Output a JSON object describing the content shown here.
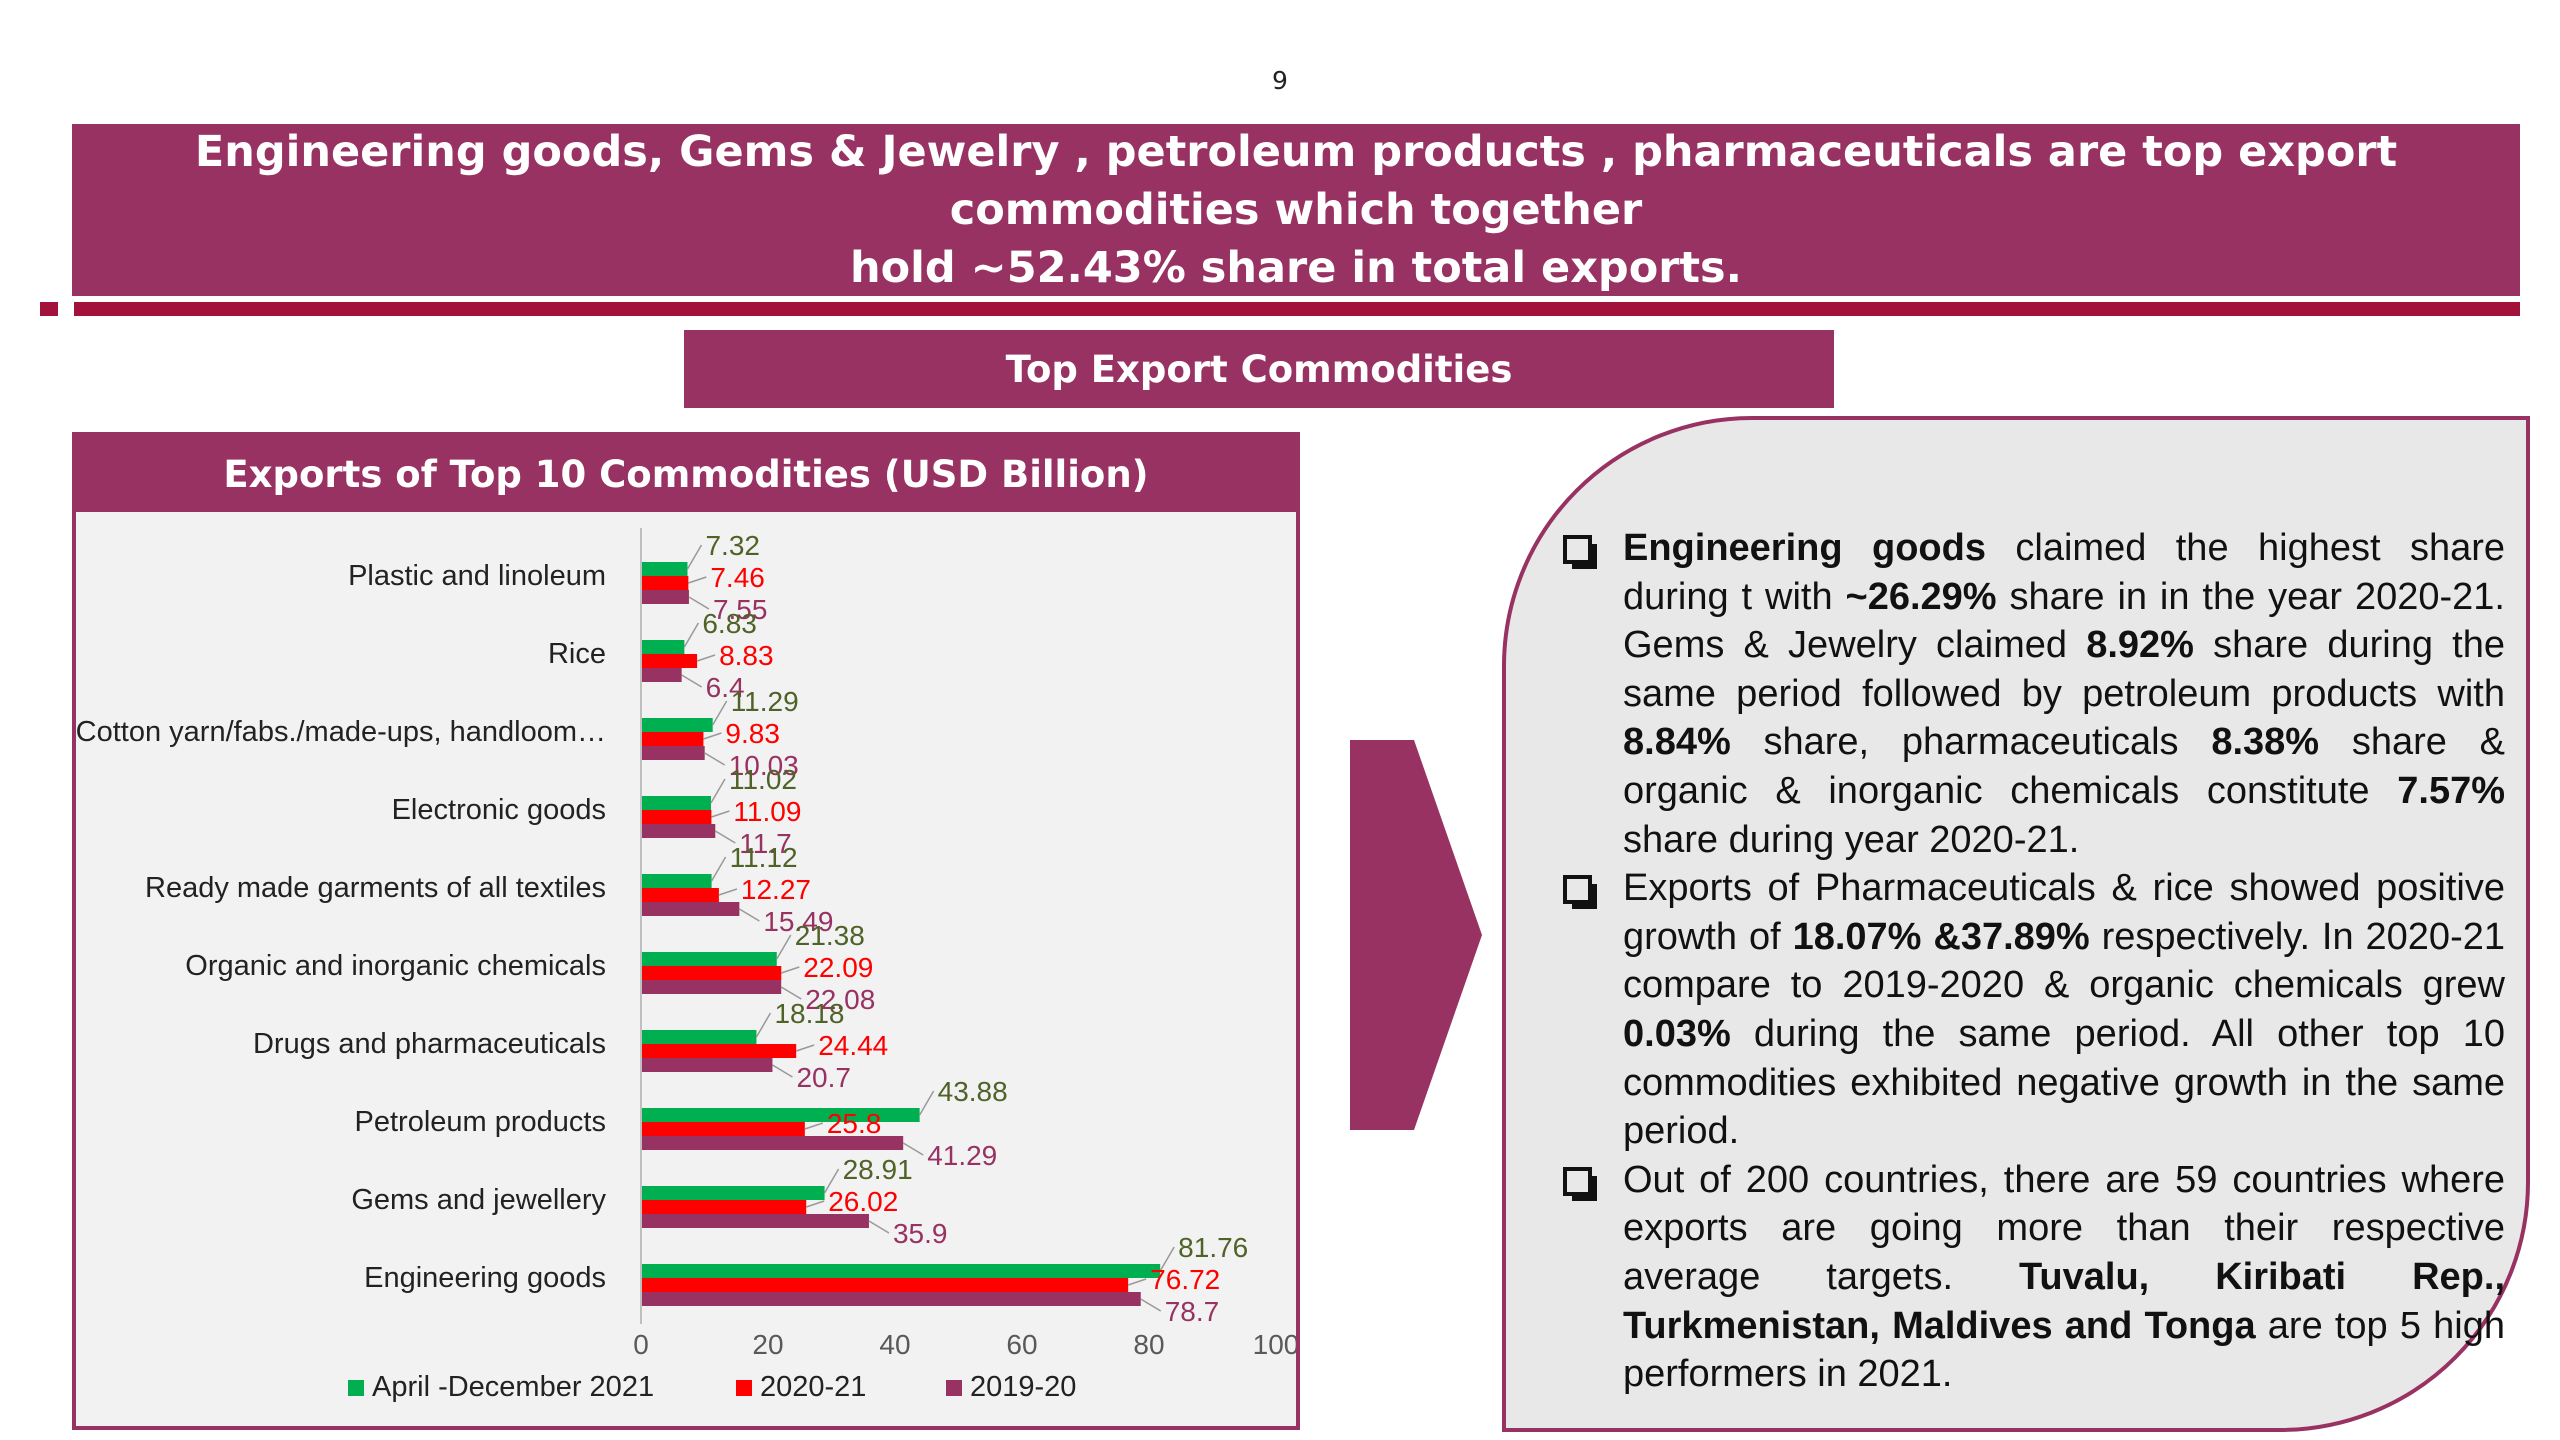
{
  "page_number": "9",
  "banner": {
    "line1": "Engineering goods, Gems & Jewelry , petroleum products , pharmaceuticals are top export commodities which together",
    "line2": "hold ~52.43% share in total exports."
  },
  "section_header": "Top Export Commodities",
  "colors": {
    "brand": "#983262",
    "accent_rule": "#a3123b",
    "series_april_dec_2021": "#00b050",
    "series_2020_21": "#ff0000",
    "series_2019_20": "#983262"
  },
  "chart_data": {
    "type": "bar",
    "orientation": "horizontal",
    "title": "Exports of Top 10 Commodities (USD Billion)",
    "categories": [
      "Plastic and linoleum",
      "Rice",
      "Cotton yarn/fabs./made-ups, handloom…",
      "Electronic goods",
      "Ready made garments of all textiles",
      "Organic and inorganic chemicals",
      "Drugs and pharmaceuticals",
      "Petroleum products",
      "Gems and jewellery",
      "Engineering goods"
    ],
    "series": [
      {
        "name": "April -December 2021",
        "color": "#00b050",
        "label_color": "#4f6228",
        "values": [
          7.32,
          6.83,
          11.29,
          11.02,
          11.12,
          21.38,
          18.18,
          43.88,
          28.91,
          81.76
        ]
      },
      {
        "name": "2020-21",
        "color": "#ff0000",
        "label_color": "#ff0000",
        "values": [
          7.46,
          8.83,
          9.83,
          11.09,
          12.27,
          22.09,
          24.44,
          25.8,
          26.02,
          76.72
        ]
      },
      {
        "name": "2019-20",
        "color": "#983262",
        "label_color": "#983262",
        "values": [
          7.55,
          6.4,
          10.03,
          11.7,
          15.49,
          22.08,
          20.7,
          41.29,
          35.9,
          78.7
        ]
      }
    ],
    "xlim": [
      0,
      100
    ],
    "xticks": [
      "0",
      "20",
      "40",
      "60",
      "80",
      "100"
    ],
    "legend_position": "bottom",
    "grid": false
  },
  "info": {
    "bullets": [
      [
        {
          "t": "Engineering goods",
          "b": true
        },
        {
          "t": " claimed the highest share during t with "
        },
        {
          "t": "~26.29%",
          "b": true
        },
        {
          "t": " share in in the year 2020-21. Gems & Jewelry claimed "
        },
        {
          "t": "8.92%",
          "b": true
        },
        {
          "t": " share during the same period followed by petroleum products with "
        },
        {
          "t": "8.84%",
          "b": true
        },
        {
          "t": " share, pharmaceuticals "
        },
        {
          "t": "8.38%",
          "b": true
        },
        {
          "t": " share & organic & inorganic chemicals constitute "
        },
        {
          "t": "7.57%",
          "b": true
        },
        {
          "t": " share during year 2020-21."
        }
      ],
      [
        {
          "t": " Exports of Pharmaceuticals & rice showed positive growth of "
        },
        {
          "t": "18.07% &37.89%",
          "b": true
        },
        {
          "t": " respectively. In 2020-21 compare to 2019-2020 & organic chemicals grew "
        },
        {
          "t": "0.03%",
          "b": true
        },
        {
          "t": " during the same period. All other top 10 commodities exhibited negative growth in the same period."
        }
      ],
      [
        {
          "t": "Out of 200 countries, there are 59 countries where exports are going more than their respective average targets. "
        },
        {
          "t": "Tuvalu, Kiribati Rep., Turkmenistan, Maldives and Tonga",
          "b": true
        },
        {
          "t": " are top 5 high performers in 2021."
        }
      ]
    ]
  }
}
